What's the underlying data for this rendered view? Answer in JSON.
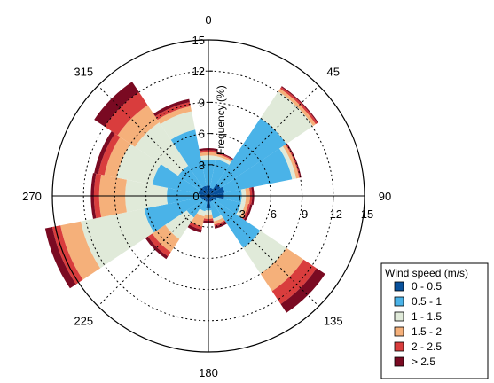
{
  "chart_data": {
    "type": "wind-rose",
    "ylabel": "Frequency (%)",
    "rlim": [
      0,
      15
    ],
    "rticks": [
      3,
      6,
      9,
      12,
      15
    ],
    "rtick_labels": [
      "3",
      "6",
      "9",
      "12",
      "15"
    ],
    "direction_labels": [
      {
        "deg": 0,
        "text": "0"
      },
      {
        "deg": 45,
        "text": "45"
      },
      {
        "deg": 90,
        "text": "90"
      },
      {
        "deg": 135,
        "text": "135"
      },
      {
        "deg": 180,
        "text": "180"
      },
      {
        "deg": 225,
        "text": "225"
      },
      {
        "deg": 270,
        "text": "270"
      },
      {
        "deg": 315,
        "text": "315"
      }
    ],
    "legend": {
      "title": "Wind speed (m/s)",
      "placement": "bottom-right",
      "entries": [
        "0 - 0.5",
        "0.5 - 1",
        "1 - 1.5",
        "1.5 - 2",
        "2 - 2.5",
        "> 2.5"
      ],
      "colors": [
        "#08519c",
        "#4ab3e8",
        "#e0ead9",
        "#f5b07a",
        "#d93d3d",
        "#7a0a22"
      ]
    },
    "sector_width_deg": 22.5,
    "directions": [
      0,
      22.5,
      45,
      67.5,
      90,
      112.5,
      135,
      157.5,
      180,
      202.5,
      225,
      247.5,
      270,
      292.5,
      315,
      337.5
    ],
    "cumulative_series": [
      {
        "name": "0 - 0.5",
        "values": [
          1.0,
          0.8,
          1.4,
          1.6,
          1.5,
          0.8,
          0.6,
          0.6,
          1.2,
          0.6,
          0.5,
          0.7,
          0.8,
          1.0,
          1.0,
          1.0
        ]
      },
      {
        "name": "0.5 - 1",
        "values": [
          3.5,
          3.6,
          9.0,
          8.2,
          3.2,
          3.2,
          6.0,
          2.2,
          1.4,
          1.5,
          2.5,
          6.3,
          4.0,
          5.5,
          3.5,
          6.5
        ]
      },
      {
        "name": "1 - 1.5",
        "values": [
          3.9,
          3.9,
          12.1,
          8.6,
          3.6,
          3.6,
          9.0,
          2.5,
          1.8,
          2.0,
          5.0,
          12.5,
          8.0,
          9.0,
          8.5,
          8.3
        ]
      },
      {
        "name": "1.5 - 2",
        "values": [
          4.2,
          4.1,
          12.4,
          8.9,
          4.0,
          3.9,
          11.0,
          2.8,
          2.2,
          3.0,
          6.5,
          14.5,
          10.5,
          10.2,
          10.5,
          8.8
        ]
      },
      {
        "name": "2 - 2.5",
        "values": [
          4.4,
          4.2,
          12.6,
          9.0,
          4.2,
          4.1,
          12.5,
          3.0,
          2.4,
          3.3,
          7.0,
          15.3,
          11.0,
          10.8,
          12.0,
          9.2
        ]
      },
      {
        "name": "> 2.5",
        "values": [
          4.6,
          4.3,
          12.7,
          9.1,
          4.4,
          4.3,
          13.5,
          3.2,
          2.6,
          3.6,
          7.3,
          16.0,
          11.3,
          11.2,
          13.2,
          9.5
        ]
      }
    ]
  }
}
